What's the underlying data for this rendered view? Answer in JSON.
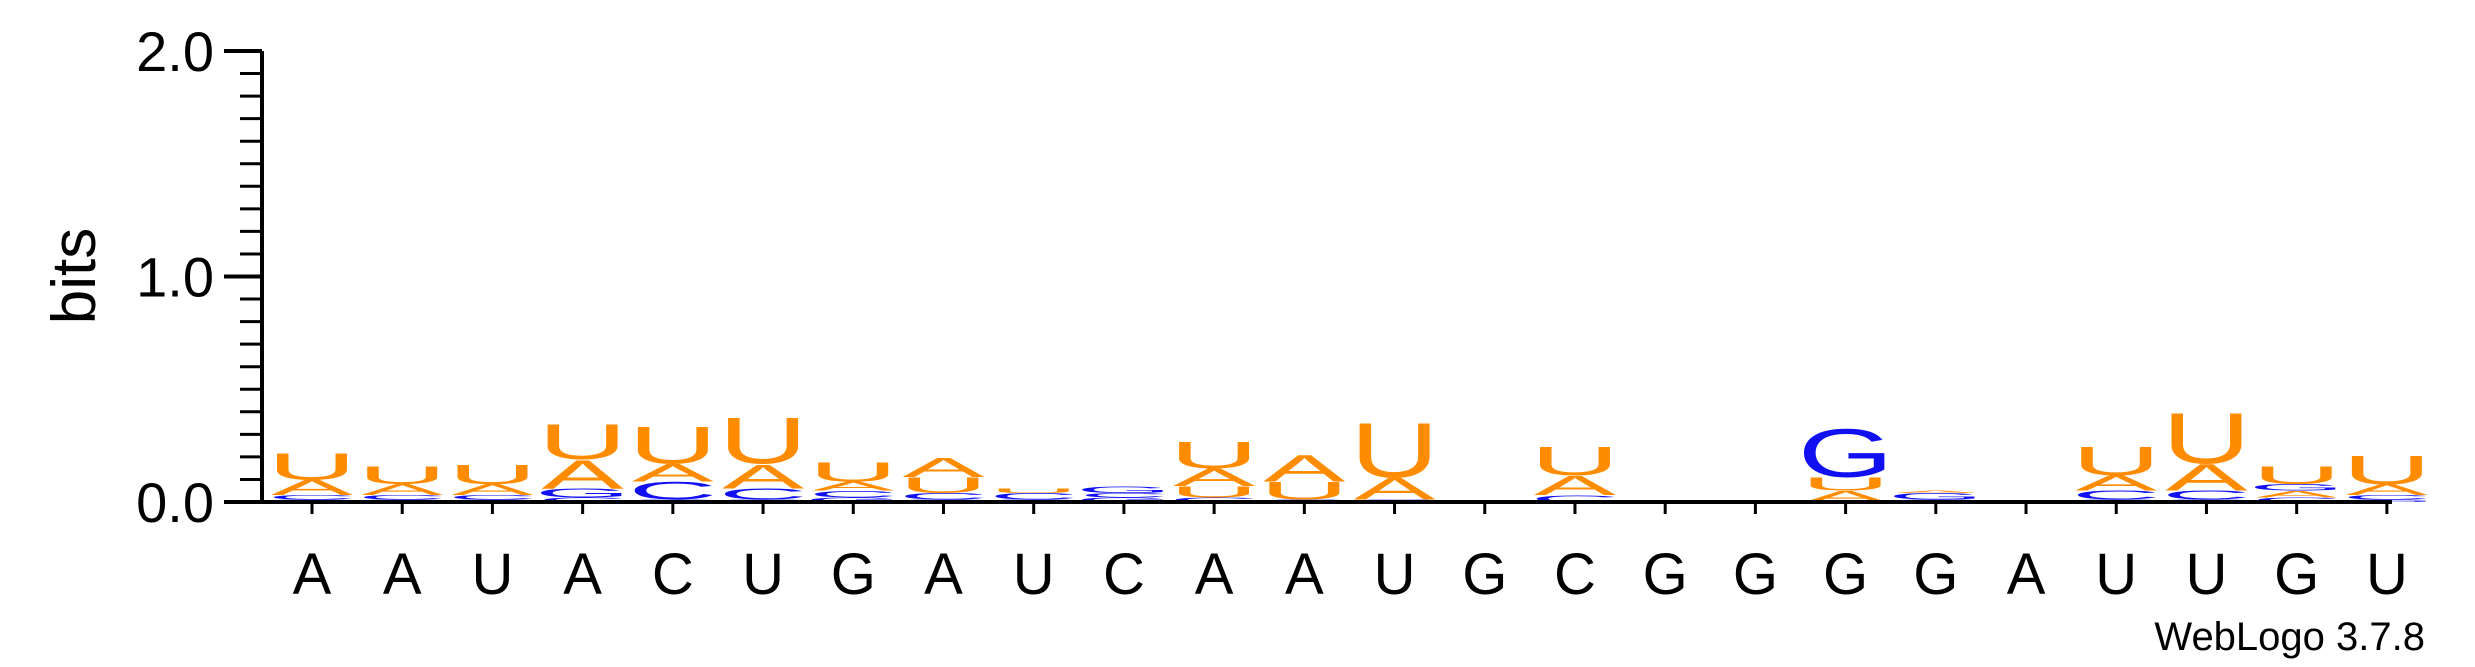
{
  "chart_data": {
    "type": "sequence-logo",
    "ylabel": "bits",
    "ylim": [
      0,
      2.0
    ],
    "yticks": [
      {
        "value": 0.0,
        "label": "0.0"
      },
      {
        "value": 1.0,
        "label": "1.0"
      },
      {
        "value": 2.0,
        "label": "2.0"
      }
    ],
    "colors": {
      "U": "#FF8C00",
      "A": "#FF8C00",
      "C": "#1010F0",
      "G": "#1010F0",
      "axis": "#000000"
    },
    "credit": "WebLogo 3.7.8",
    "positions": [
      {
        "label": "A",
        "stack": [
          {
            "letter": "G",
            "bits": 0.01
          },
          {
            "letter": "C",
            "bits": 0.02
          },
          {
            "letter": "A",
            "bits": 0.07
          },
          {
            "letter": "U",
            "bits": 0.12
          }
        ]
      },
      {
        "label": "A",
        "stack": [
          {
            "letter": "G",
            "bits": 0.01
          },
          {
            "letter": "C",
            "bits": 0.02
          },
          {
            "letter": "A",
            "bits": 0.05
          },
          {
            "letter": "U",
            "bits": 0.08
          }
        ]
      },
      {
        "label": "U",
        "stack": [
          {
            "letter": "G",
            "bits": 0.01
          },
          {
            "letter": "C",
            "bits": 0.02
          },
          {
            "letter": "A",
            "bits": 0.05
          },
          {
            "letter": "U",
            "bits": 0.09
          }
        ]
      },
      {
        "label": "A",
        "stack": [
          {
            "letter": "C",
            "bits": 0.02
          },
          {
            "letter": "G",
            "bits": 0.04
          },
          {
            "letter": "A",
            "bits": 0.13
          },
          {
            "letter": "U",
            "bits": 0.16
          }
        ]
      },
      {
        "label": "C",
        "stack": [
          {
            "letter": "G",
            "bits": 0.01
          },
          {
            "letter": "C",
            "bits": 0.08
          },
          {
            "letter": "A",
            "bits": 0.08
          },
          {
            "letter": "U",
            "bits": 0.17
          }
        ]
      },
      {
        "label": "U",
        "stack": [
          {
            "letter": "G",
            "bits": 0.01
          },
          {
            "letter": "C",
            "bits": 0.05
          },
          {
            "letter": "A",
            "bits": 0.11
          },
          {
            "letter": "U",
            "bits": 0.21
          }
        ]
      },
      {
        "label": "G",
        "stack": [
          {
            "letter": "G",
            "bits": 0.02
          },
          {
            "letter": "C",
            "bits": 0.03
          },
          {
            "letter": "A",
            "bits": 0.04
          },
          {
            "letter": "U",
            "bits": 0.09
          }
        ]
      },
      {
        "label": "A",
        "stack": [
          {
            "letter": "G",
            "bits": 0.01
          },
          {
            "letter": "C",
            "bits": 0.03
          },
          {
            "letter": "U",
            "bits": 0.07
          },
          {
            "letter": "A",
            "bits": 0.09
          }
        ]
      },
      {
        "label": "U",
        "stack": [
          {
            "letter": "G",
            "bits": 0.01
          },
          {
            "letter": "C",
            "bits": 0.03
          },
          {
            "letter": "U",
            "bits": 0.02
          }
        ]
      },
      {
        "label": "C",
        "stack": [
          {
            "letter": "G",
            "bits": 0.02
          },
          {
            "letter": "C",
            "bits": 0.02
          },
          {
            "letter": "G",
            "bits": 0.03
          }
        ]
      },
      {
        "label": "A",
        "stack": [
          {
            "letter": "C",
            "bits": 0.02
          },
          {
            "letter": "U",
            "bits": 0.05
          },
          {
            "letter": "A",
            "bits": 0.08
          },
          {
            "letter": "U",
            "bits": 0.12
          }
        ]
      },
      {
        "label": "A",
        "stack": [
          {
            "letter": "C",
            "bits": 0.01
          },
          {
            "letter": "U",
            "bits": 0.08
          },
          {
            "letter": "A",
            "bits": 0.12
          }
        ]
      },
      {
        "label": "U",
        "stack": [
          {
            "letter": "C",
            "bits": 0.01
          },
          {
            "letter": "A",
            "bits": 0.1
          },
          {
            "letter": "U",
            "bits": 0.25
          }
        ]
      },
      {
        "label": "G",
        "stack": []
      },
      {
        "label": "C",
        "stack": [
          {
            "letter": "C",
            "bits": 0.03
          },
          {
            "letter": "A",
            "bits": 0.09
          },
          {
            "letter": "U",
            "bits": 0.13
          }
        ]
      },
      {
        "label": "G",
        "stack": []
      },
      {
        "label": "G",
        "stack": [
          {
            "letter": "A",
            "bits": 0.004
          }
        ]
      },
      {
        "label": "G",
        "stack": [
          {
            "letter": "A",
            "bits": 0.05
          },
          {
            "letter": "U",
            "bits": 0.06
          },
          {
            "letter": "G",
            "bits": 0.22
          }
        ]
      },
      {
        "label": "G",
        "stack": [
          {
            "letter": "C",
            "bits": 0.01
          },
          {
            "letter": "G",
            "bits": 0.03
          },
          {
            "letter": "A",
            "bits": 0.01
          }
        ]
      },
      {
        "label": "A",
        "stack": []
      },
      {
        "label": "U",
        "stack": [
          {
            "letter": "G",
            "bits": 0.01
          },
          {
            "letter": "C",
            "bits": 0.04
          },
          {
            "letter": "A",
            "bits": 0.07
          },
          {
            "letter": "U",
            "bits": 0.13
          }
        ]
      },
      {
        "label": "U",
        "stack": [
          {
            "letter": "G",
            "bits": 0.01
          },
          {
            "letter": "C",
            "bits": 0.04
          },
          {
            "letter": "A",
            "bits": 0.12
          },
          {
            "letter": "U",
            "bits": 0.23
          }
        ]
      },
      {
        "label": "G",
        "stack": [
          {
            "letter": "C",
            "bits": 0.02
          },
          {
            "letter": "A",
            "bits": 0.03
          },
          {
            "letter": "G",
            "bits": 0.03
          },
          {
            "letter": "U",
            "bits": 0.08
          }
        ]
      },
      {
        "label": "U",
        "stack": [
          {
            "letter": "G",
            "bits": 0.01
          },
          {
            "letter": "C",
            "bits": 0.02
          },
          {
            "letter": "A",
            "bits": 0.05
          },
          {
            "letter": "U",
            "bits": 0.13
          }
        ]
      }
    ]
  }
}
